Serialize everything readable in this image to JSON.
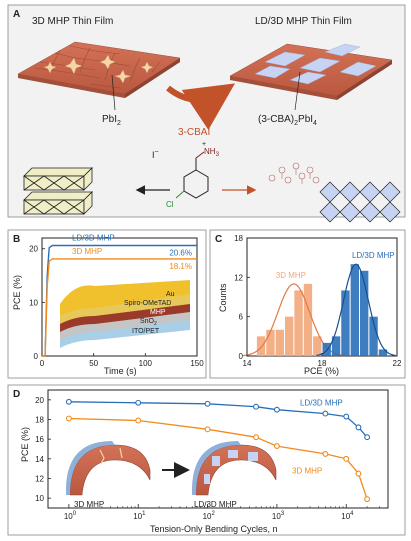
{
  "panelA": {
    "letter": "A",
    "left_title": "3D MHP Thin Film",
    "right_title": "LD/3D MHP Thin Film",
    "left_label_main": "PbI",
    "left_label_sub": "2",
    "arrow_label": "3-CBAI",
    "right_label_pre": "(3-CBA)",
    "right_label_sub1": "2",
    "right_label_mid": "PbI",
    "right_label_sub2": "4",
    "iodide": "I",
    "iodide_sup": "−",
    "ammonium": "NH",
    "ammonium_sub": "3",
    "ammonium_sup": "+",
    "chloro": "Cl",
    "colors": {
      "brick": "#c8664a",
      "brick_dark": "#a9533c",
      "pbi2": "#f4d6a8",
      "ld": "#c6d3f2",
      "arrow": "#c2522a"
    }
  },
  "panelB": {
    "letter": "B",
    "layers": [
      "Au",
      "Spiro-OMeTAD",
      "MHP",
      "SnO",
      "2",
      "ITO/PET"
    ]
  },
  "chart_data": [
    {
      "type": "line",
      "panel": "B",
      "xlabel": "Time (s)",
      "ylabel": "PCE (%)",
      "xlim": [
        0,
        150
      ],
      "ylim": [
        0,
        22
      ],
      "xticks": [
        "0",
        "50",
        "100",
        "150"
      ],
      "yticks": [
        "0",
        "10",
        "20"
      ],
      "series": [
        {
          "name": "LD/3D MHP",
          "color": "#2a6fba",
          "label": "20.6%",
          "x": [
            0,
            3,
            5,
            7,
            10,
            15,
            30,
            150
          ],
          "y": [
            0,
            0,
            15,
            20.2,
            20.6,
            20.6,
            20.6,
            20.6
          ]
        },
        {
          "name": "3D MHP",
          "color": "#f28a1c",
          "label": "18.1%",
          "x": [
            0,
            3,
            5,
            7,
            10,
            15,
            30,
            150
          ],
          "y": [
            0,
            0,
            13,
            17.7,
            18.1,
            18.1,
            18.1,
            18.1
          ]
        }
      ]
    },
    {
      "type": "bar",
      "panel": "C",
      "xlabel": "PCE (%)",
      "ylabel": "Counts",
      "xlim": [
        14,
        22
      ],
      "ylim": [
        0,
        18
      ],
      "xticks": [
        "14",
        "18",
        "22"
      ],
      "yticks": [
        "0",
        "6",
        "12",
        "18"
      ],
      "series": [
        {
          "name": "3D MHP",
          "color": "#f2a679",
          "bins": [
            [
              14.5,
              15
            ],
            [
              15,
              15.5
            ],
            [
              15.5,
              16
            ],
            [
              16,
              16.5
            ],
            [
              16.5,
              17
            ],
            [
              17,
              17.5
            ],
            [
              17.5,
              18
            ]
          ],
          "values": [
            3,
            4,
            4,
            6,
            10,
            11,
            3
          ]
        },
        {
          "name": "LD/3D MHP",
          "color": "#2a6fba",
          "bins": [
            [
              18,
              18.5
            ],
            [
              18.5,
              19
            ],
            [
              19,
              19.5
            ],
            [
              19.5,
              20
            ],
            [
              20,
              20.5
            ],
            [
              20.5,
              21
            ],
            [
              21,
              21.5
            ]
          ],
          "values": [
            2,
            3,
            10,
            14,
            13,
            6,
            1
          ]
        }
      ]
    },
    {
      "type": "line",
      "panel": "D",
      "xlabel": "Tension-Only  Bending Cycles, n",
      "ylabel": "PCE (%)",
      "xscale": "log",
      "xlim": [
        0.5,
        40000
      ],
      "ylim": [
        9,
        21
      ],
      "xticks_exp": [
        "0",
        "1",
        "2",
        "3",
        "4"
      ],
      "yticks": [
        "10",
        "12",
        "14",
        "16",
        "18",
        "20"
      ],
      "series": [
        {
          "name": "LD/3D MHP",
          "color": "#2a6fba",
          "x": [
            1,
            10,
            100,
            500,
            1000,
            5000,
            10000,
            15000,
            20000
          ],
          "y": [
            19.8,
            19.7,
            19.6,
            19.3,
            19.0,
            18.6,
            18.3,
            17.2,
            16.2
          ]
        },
        {
          "name": "3D MHP",
          "color": "#f28a1c",
          "x": [
            1,
            10,
            100,
            500,
            1000,
            5000,
            10000,
            15000,
            20000
          ],
          "y": [
            18.1,
            17.9,
            17.0,
            16.2,
            15.3,
            14.5,
            14.0,
            12.5,
            9.9
          ]
        }
      ]
    }
  ],
  "panelC": {
    "letter": "C"
  },
  "panelD": {
    "letter": "D",
    "inset_left": "3D MHP",
    "inset_right": "LD/3D MHP",
    "tick_base": "10"
  }
}
